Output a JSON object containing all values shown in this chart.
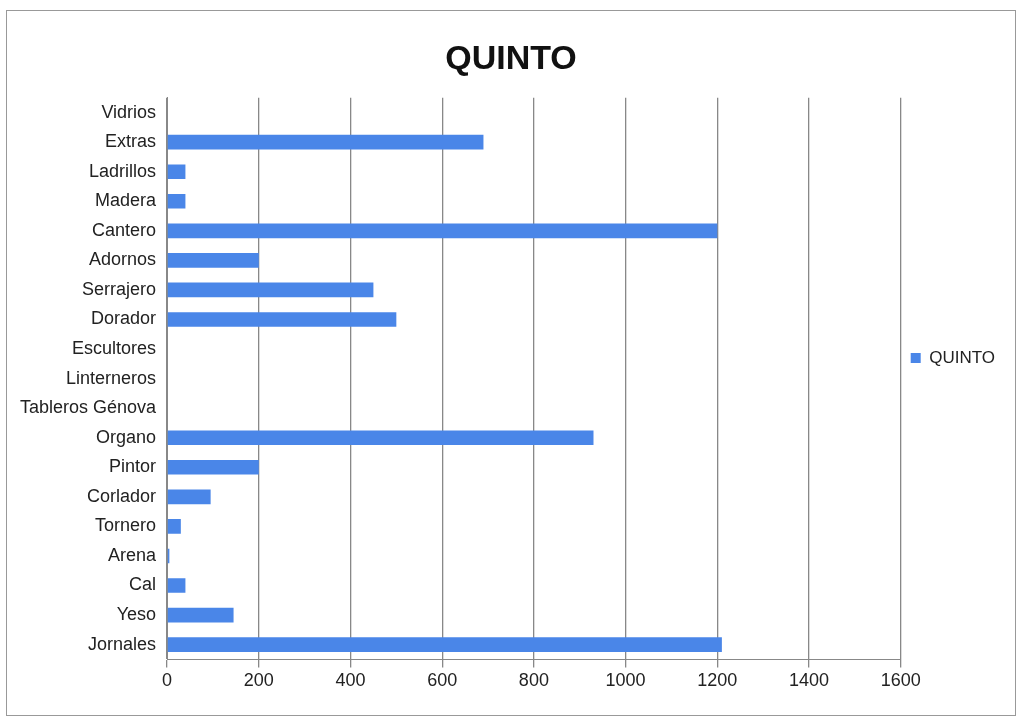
{
  "chart_data": {
    "type": "bar",
    "orientation": "horizontal",
    "title": "QUINTO",
    "categories": [
      "Vidrios",
      "Extras",
      "Ladrillos",
      "Madera",
      "Cantero",
      "Adornos",
      "Serrajero",
      "Dorador",
      "Escultores",
      "Linterneros",
      "Tableros Génova",
      "Organo",
      "Pintor",
      "Corlador",
      "Tornero",
      "Arena",
      "Cal",
      "Yeso",
      "Jornales"
    ],
    "series": [
      {
        "name": "QUINTO",
        "color": "#4a86e8",
        "values": [
          0,
          690,
          40,
          40,
          1200,
          200,
          450,
          500,
          0,
          0,
          0,
          930,
          200,
          95,
          30,
          5,
          40,
          145,
          1210
        ]
      }
    ],
    "xlim": [
      0,
      1600
    ],
    "xticks": [
      0,
      200,
      400,
      600,
      800,
      1000,
      1200,
      1400,
      1600
    ],
    "grid": "x",
    "legend": "right"
  }
}
